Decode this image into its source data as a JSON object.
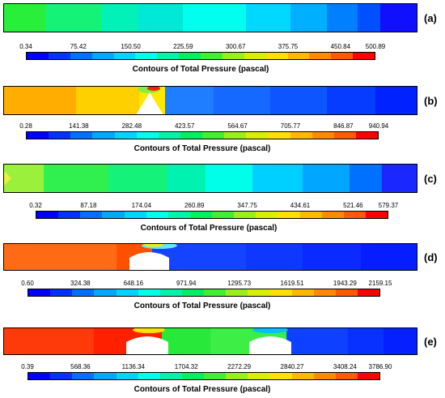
{
  "colorbar_colors": [
    "#0000ff",
    "#0033ff",
    "#0070ff",
    "#00a8ff",
    "#00d4ff",
    "#00ffe8",
    "#00f5a8",
    "#00f060",
    "#40f030",
    "#9aee1a",
    "#d8f000",
    "#ffe000",
    "#ffb800",
    "#ff8a00",
    "#ff5a00",
    "#ff0000"
  ],
  "panels": [
    {
      "label": "(a)",
      "colorbar_title": "Contours of Total Pressure (pascal)",
      "ticks": [
        "0.34",
        "75.42",
        "150.50",
        "225.59",
        "300.67",
        "375.75",
        "450.84",
        "500.89"
      ],
      "obstacles": 0,
      "regions": [
        "#28f03a",
        "#14f278",
        "#00f2b8",
        "#00ffee",
        "#00d8ff",
        "#00b0ff",
        "#0080ff",
        "#0050ff",
        "#1010ff"
      ]
    },
    {
      "label": "(b)",
      "colorbar_title": "Contours of Total Pressure (pascal)",
      "ticks": [
        "0.28",
        "141.38",
        "282.48",
        "423.57",
        "564.67",
        "705.77",
        "846.87",
        "940.94"
      ],
      "obstacles": 1,
      "regions": [
        "#ffae00",
        "#ffd000",
        "#ffe800",
        "#1f7dff",
        "#1569ff",
        "#0c55ff",
        "#053cff",
        "#0022ff"
      ]
    },
    {
      "label": "(c)",
      "colorbar_title": "Contours of Total Pressure (pascal)",
      "ticks": [
        "0.32",
        "87.18",
        "174.04",
        "260.89",
        "347.75",
        "434.61",
        "521.46",
        "579.37"
      ],
      "obstacles": 0,
      "regions": [
        "#9af03a",
        "#30f050",
        "#14f27a",
        "#00f2b0",
        "#00ffe8",
        "#00d0ff",
        "#00a6ff",
        "#0070ff",
        "#1a28ff"
      ]
    },
    {
      "label": "(d)",
      "colorbar_title": "Contours of Total Pressure (pascal)",
      "ticks": [
        "0.60",
        "324.38",
        "648.16",
        "971.94",
        "1295.73",
        "1619.51",
        "1943.29",
        "2159.15"
      ],
      "obstacles": 1,
      "regions": [
        "#ff6a14",
        "#ff5000",
        "#1444ff",
        "#0f38ff",
        "#0a2aff",
        "#061eff"
      ]
    },
    {
      "label": "(e)",
      "colorbar_title": "Contours of Total Pressure (pascal)",
      "ticks": [
        "0.39",
        "568.36",
        "1136.34",
        "1704.32",
        "2272.29",
        "2840.27",
        "3408.24",
        "3786.90"
      ],
      "obstacles": 2,
      "regions": [
        "#ff3a0a",
        "#ff2000",
        "#28e83a",
        "#3cee46",
        "#0d40ff",
        "#0830ff",
        "#0520ff"
      ]
    }
  ]
}
